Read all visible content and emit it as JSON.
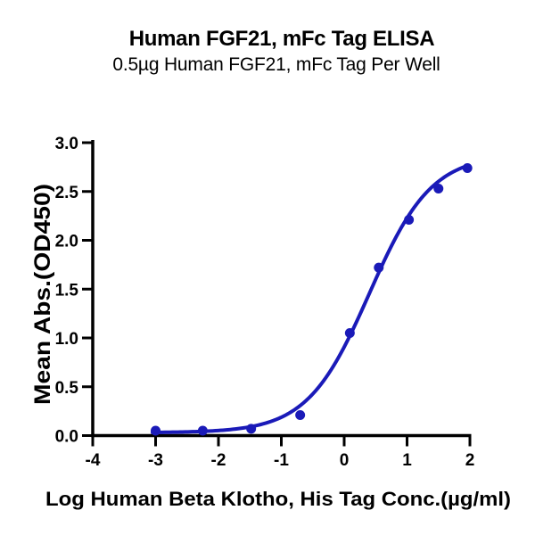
{
  "header": {
    "title": "Human FGF21, mFc Tag ELISA",
    "subtitle": "0.5µg Human FGF21, mFc Tag Per Well"
  },
  "chart_data": {
    "type": "scatter",
    "title": "Human FGF21, mFc Tag ELISA",
    "subtitle": "0.5µg Human FGF21, mFc Tag Per Well",
    "xlabel": "Log Human Beta Klotho, His Tag Conc.(µg/ml)",
    "ylabel": "Mean Abs.(OD450)",
    "xlim": [
      -4,
      2
    ],
    "ylim": [
      0.0,
      3.0
    ],
    "x_tick_labels": [
      "-4",
      "-3",
      "-2",
      "-1",
      "0",
      "1",
      "2"
    ],
    "x_tick_values": [
      -4,
      -3,
      -2,
      -1,
      0,
      1,
      2
    ],
    "y_tick_labels": [
      "0.0",
      "0.5",
      "1.0",
      "1.5",
      "2.0",
      "2.5",
      "3.0"
    ],
    "y_tick_values": [
      0.0,
      0.5,
      1.0,
      1.5,
      2.0,
      2.5,
      3.0
    ],
    "grid": false,
    "legend": "none",
    "points": {
      "x": [
        -3.0,
        -2.25,
        -1.48,
        -0.7,
        0.09,
        0.55,
        1.03,
        1.5,
        1.96
      ],
      "y": [
        0.05,
        0.05,
        0.07,
        0.21,
        1.05,
        1.72,
        2.21,
        2.53,
        2.74
      ]
    },
    "fit_curve": {
      "model": "4PL sigmoid",
      "bottom": 0.03,
      "top": 2.88,
      "log_ec50": 0.4,
      "hill": 0.88,
      "x_start": -3.05,
      "x_end": 1.96
    },
    "colors": {
      "series": "#1a1ab8",
      "axis": "#000000",
      "text": "#000000",
      "background": "#ffffff"
    }
  }
}
